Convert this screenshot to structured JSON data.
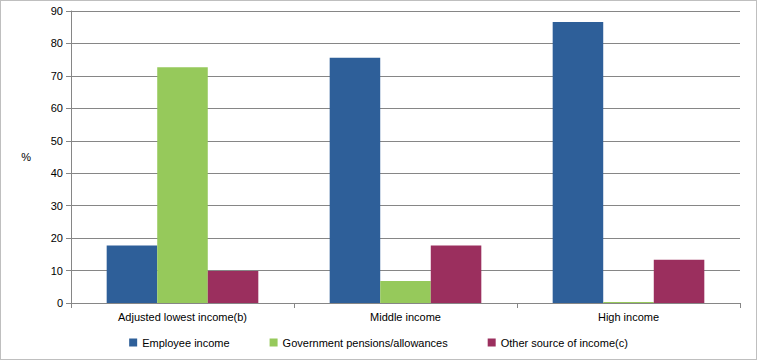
{
  "chart_data": {
    "type": "bar",
    "categories": [
      "Adjusted lowest income(b)",
      "Middle income",
      "High income"
    ],
    "series": [
      {
        "name": "Employee income",
        "color": "#2e5f99",
        "values": [
          17.7,
          75.6,
          86.6
        ]
      },
      {
        "name": "Government pensions/allowances",
        "color": "#96c95b",
        "values": [
          72.7,
          6.8,
          0.3
        ]
      },
      {
        "name": "Other source of income(c)",
        "color": "#9b2f5e",
        "values": [
          9.9,
          17.7,
          13.3
        ]
      }
    ],
    "y_label": "%",
    "ylim": [
      0,
      90
    ],
    "yticks": [
      0,
      10,
      20,
      30,
      40,
      50,
      60,
      70,
      80,
      90
    ],
    "grid": true,
    "legend": "bottom"
  }
}
